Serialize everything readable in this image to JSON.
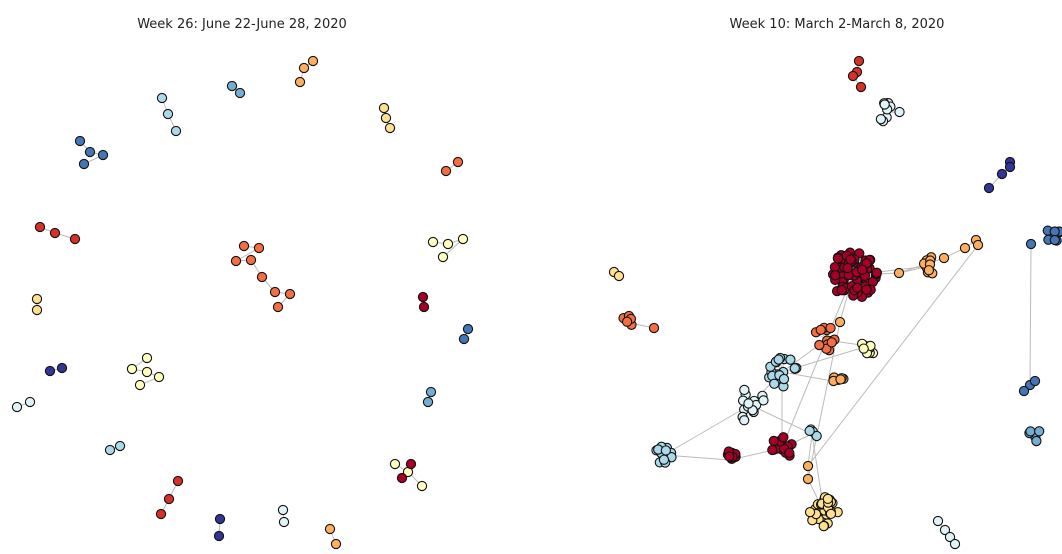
{
  "left": {
    "title": "Week 26: June 22-June 28, 2020"
  },
  "right": {
    "title": "Week 10: March 2-March 8, 2020"
  }
}
